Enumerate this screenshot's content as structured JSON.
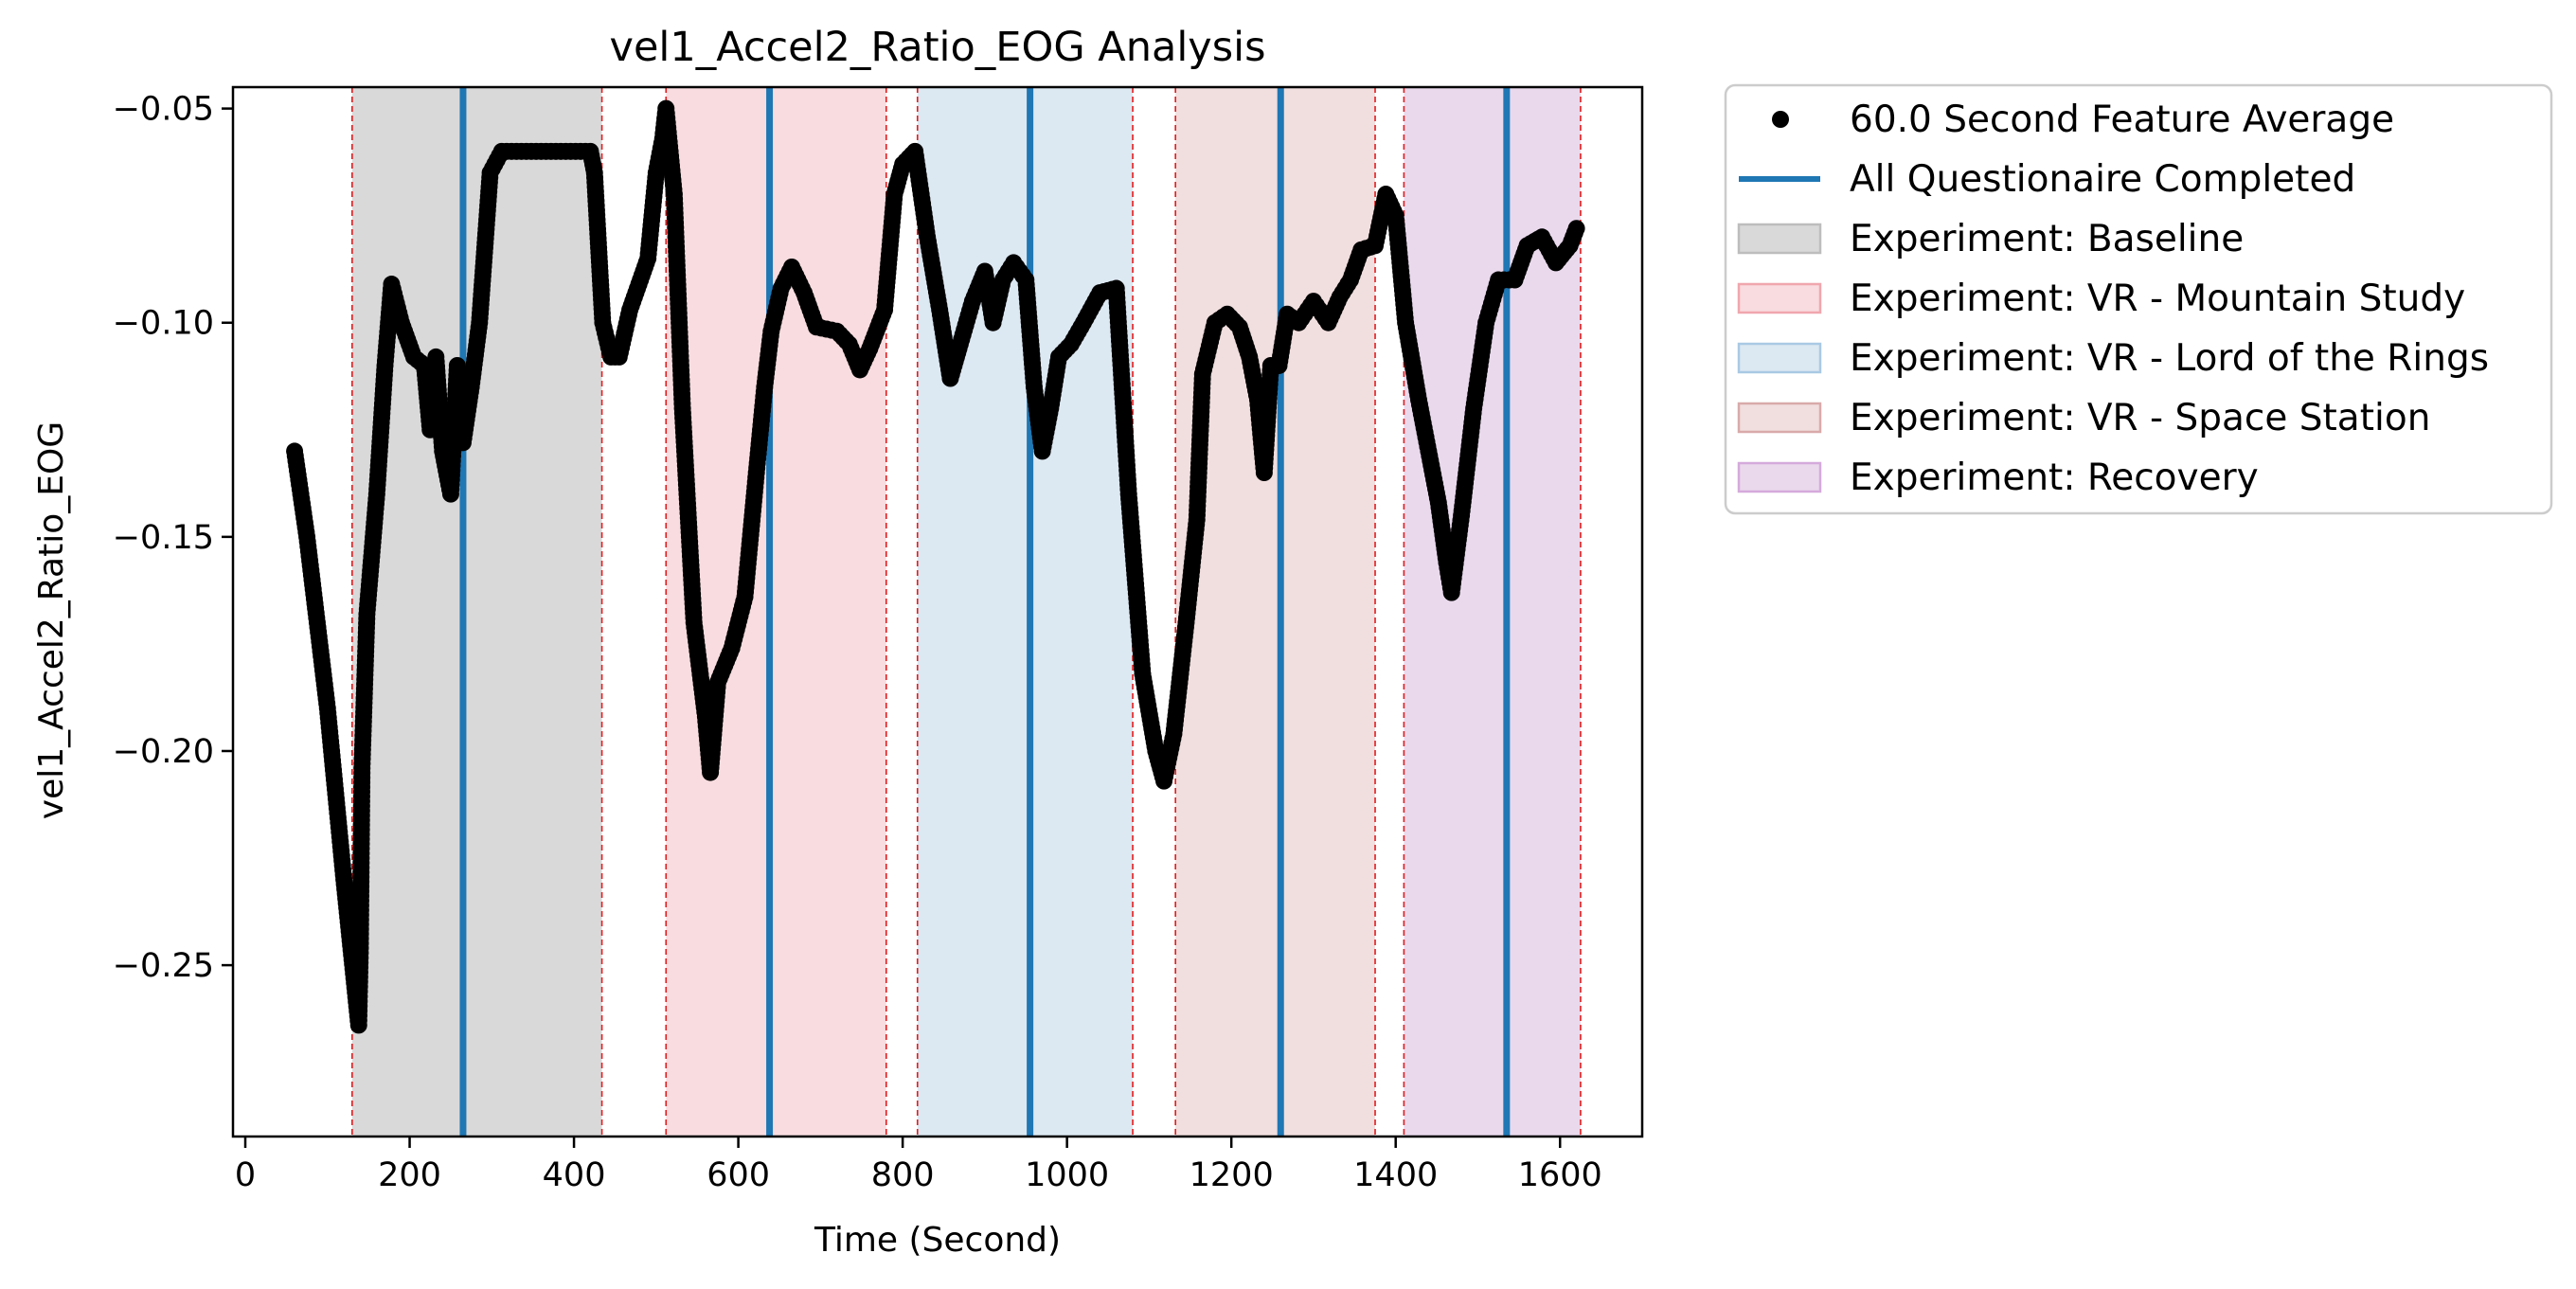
{
  "chart_data": {
    "type": "scatter",
    "title": "vel1_Accel2_Ratio_EOG Analysis",
    "xlabel": "Time (Second)",
    "ylabel": "vel1_Accel2_Ratio_EOG",
    "xlim": [
      -15,
      1700
    ],
    "ylim": [
      -0.29,
      -0.045
    ],
    "xticks": [
      0,
      200,
      400,
      600,
      800,
      1000,
      1200,
      1400,
      1600
    ],
    "xtick_labels": [
      "0",
      "200",
      "400",
      "600",
      "800",
      "1000",
      "1200",
      "1400",
      "1600"
    ],
    "yticks": [
      -0.05,
      -0.1,
      -0.15,
      -0.2,
      -0.25
    ],
    "ytick_labels": [
      "−0.05",
      "−0.10",
      "−0.15",
      "−0.20",
      "−0.25"
    ],
    "legend_position": "outside-right-top",
    "series": [
      {
        "name": "60.0 Second Feature Average",
        "kind": "scatter",
        "color": "#000000",
        "keypoints": [
          [
            60,
            -0.13
          ],
          [
            75,
            -0.15
          ],
          [
            100,
            -0.19
          ],
          [
            120,
            -0.23
          ],
          [
            138,
            -0.264
          ],
          [
            140,
            -0.246
          ],
          [
            142,
            -0.204
          ],
          [
            148,
            -0.168
          ],
          [
            160,
            -0.14
          ],
          [
            170,
            -0.11
          ],
          [
            178,
            -0.091
          ],
          [
            190,
            -0.1
          ],
          [
            205,
            -0.108
          ],
          [
            218,
            -0.11
          ],
          [
            225,
            -0.125
          ],
          [
            232,
            -0.108
          ],
          [
            240,
            -0.13
          ],
          [
            250,
            -0.14
          ],
          [
            258,
            -0.11
          ],
          [
            265,
            -0.128
          ],
          [
            275,
            -0.115
          ],
          [
            285,
            -0.1
          ],
          [
            298,
            -0.065
          ],
          [
            312,
            -0.06
          ],
          [
            360,
            -0.06
          ],
          [
            420,
            -0.06
          ],
          [
            425,
            -0.065
          ],
          [
            435,
            -0.1
          ],
          [
            445,
            -0.108
          ],
          [
            455,
            -0.108
          ],
          [
            468,
            -0.097
          ],
          [
            490,
            -0.085
          ],
          [
            500,
            -0.065
          ],
          [
            508,
            -0.057
          ],
          [
            512,
            -0.05
          ],
          [
            522,
            -0.07
          ],
          [
            532,
            -0.12
          ],
          [
            546,
            -0.17
          ],
          [
            560,
            -0.192
          ],
          [
            566,
            -0.205
          ],
          [
            575,
            -0.184
          ],
          [
            592,
            -0.176
          ],
          [
            608,
            -0.164
          ],
          [
            622,
            -0.135
          ],
          [
            632,
            -0.115
          ],
          [
            640,
            -0.102
          ],
          [
            652,
            -0.092
          ],
          [
            665,
            -0.087
          ],
          [
            680,
            -0.093
          ],
          [
            695,
            -0.101
          ],
          [
            720,
            -0.102
          ],
          [
            735,
            -0.105
          ],
          [
            748,
            -0.111
          ],
          [
            760,
            -0.106
          ],
          [
            778,
            -0.097
          ],
          [
            790,
            -0.07
          ],
          [
            800,
            -0.063
          ],
          [
            815,
            -0.06
          ],
          [
            830,
            -0.08
          ],
          [
            845,
            -0.097
          ],
          [
            858,
            -0.113
          ],
          [
            870,
            -0.105
          ],
          [
            885,
            -0.095
          ],
          [
            900,
            -0.088
          ],
          [
            910,
            -0.1
          ],
          [
            922,
            -0.09
          ],
          [
            935,
            -0.086
          ],
          [
            950,
            -0.09
          ],
          [
            960,
            -0.115
          ],
          [
            970,
            -0.13
          ],
          [
            980,
            -0.12
          ],
          [
            990,
            -0.108
          ],
          [
            1005,
            -0.105
          ],
          [
            1020,
            -0.1
          ],
          [
            1040,
            -0.093
          ],
          [
            1060,
            -0.092
          ],
          [
            1075,
            -0.14
          ],
          [
            1092,
            -0.182
          ],
          [
            1108,
            -0.2
          ],
          [
            1118,
            -0.207
          ],
          [
            1130,
            -0.196
          ],
          [
            1145,
            -0.17
          ],
          [
            1158,
            -0.146
          ],
          [
            1165,
            -0.112
          ],
          [
            1180,
            -0.1
          ],
          [
            1195,
            -0.098
          ],
          [
            1210,
            -0.101
          ],
          [
            1222,
            -0.108
          ],
          [
            1232,
            -0.118
          ],
          [
            1240,
            -0.135
          ],
          [
            1248,
            -0.11
          ],
          [
            1258,
            -0.11
          ],
          [
            1268,
            -0.098
          ],
          [
            1282,
            -0.1
          ],
          [
            1300,
            -0.095
          ],
          [
            1318,
            -0.1
          ],
          [
            1332,
            -0.094
          ],
          [
            1345,
            -0.09
          ],
          [
            1358,
            -0.083
          ],
          [
            1375,
            -0.082
          ],
          [
            1388,
            -0.07
          ],
          [
            1400,
            -0.075
          ],
          [
            1412,
            -0.1
          ],
          [
            1428,
            -0.118
          ],
          [
            1440,
            -0.13
          ],
          [
            1452,
            -0.142
          ],
          [
            1462,
            -0.156
          ],
          [
            1468,
            -0.163
          ],
          [
            1480,
            -0.145
          ],
          [
            1495,
            -0.12
          ],
          [
            1510,
            -0.1
          ],
          [
            1525,
            -0.09
          ],
          [
            1545,
            -0.09
          ],
          [
            1560,
            -0.082
          ],
          [
            1578,
            -0.08
          ],
          [
            1595,
            -0.086
          ],
          [
            1612,
            -0.082
          ],
          [
            1620,
            -0.078
          ]
        ]
      }
    ],
    "vertical_lines": {
      "name": "All Questionaire Completed",
      "color": "#1f77b4",
      "x": [
        265,
        638,
        955,
        1260,
        1535
      ]
    },
    "regions": [
      {
        "name": "Experiment: Baseline",
        "color": "#d9d9d9",
        "edge": "#bdbdbd",
        "spans": [
          [
            130,
            434
          ]
        ]
      },
      {
        "name": "Experiment: VR - Mountain Study",
        "color": "#f8dcdf",
        "edge": "#f0a6ad",
        "spans": [
          [
            512,
            780
          ]
        ]
      },
      {
        "name": "Experiment: VR - Lord of the Rings",
        "color": "#dce8f2",
        "edge": "#a9c9e4",
        "spans": [
          [
            818,
            1080
          ]
        ]
      },
      {
        "name": "Experiment: VR - Space Station",
        "color": "#f1dede",
        "edge": "#d9aaaa",
        "spans": [
          [
            1132,
            1375
          ]
        ]
      },
      {
        "name": "Experiment: Recovery",
        "color": "#ead9ed",
        "edge": "#d5aadb",
        "spans": [
          [
            1410,
            1625
          ]
        ]
      }
    ],
    "region_boundary_color": "#e41a1c"
  }
}
